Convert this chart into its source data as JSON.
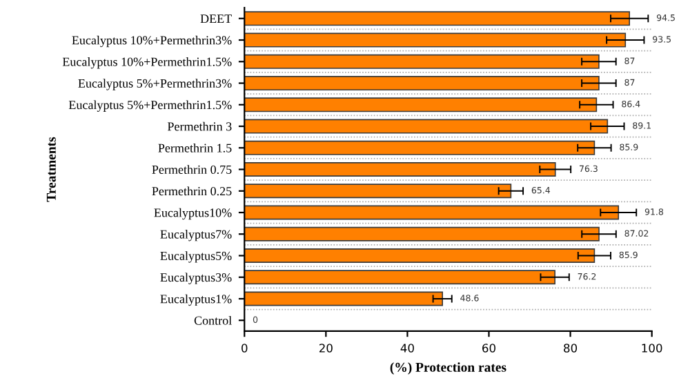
{
  "chart_data": {
    "type": "bar",
    "orientation": "horizontal",
    "xlabel": "(%) Protection rates",
    "ylabel": "Treatments",
    "categories": [
      "DEET",
      "Eucalyptus 10%+Permethrin3%",
      "Eucalyptus 10%+Permethrin1.5%",
      "Eucalyptus 5%+Permethrin3%",
      "Eucalyptus 5%+Permethrin1.5%",
      "Permethrin 3",
      "Permethrin 1.5",
      "Permethrin 0.75",
      "Permethrin 0.25",
      "Eucalyptus10%",
      "Eucalyptus7%",
      "Eucalyptus5%",
      "Eucalyptus3%",
      "Eucalyptus1%",
      "Control"
    ],
    "values": [
      94.5,
      93.5,
      87,
      87,
      86.4,
      89.1,
      85.9,
      76.3,
      65.4,
      91.8,
      87.02,
      85.9,
      76.2,
      48.6,
      0
    ],
    "errors": [
      4.6,
      4.6,
      4.2,
      4.2,
      4.1,
      4.1,
      4.1,
      3.8,
      3.0,
      4.4,
      4.2,
      4.0,
      3.5,
      2.3,
      null
    ],
    "color": "#ff8000",
    "data_labels": true,
    "grid": "y",
    "xlim": [
      0,
      100
    ],
    "xticks": [
      0,
      20,
      40,
      60,
      80,
      100
    ]
  }
}
